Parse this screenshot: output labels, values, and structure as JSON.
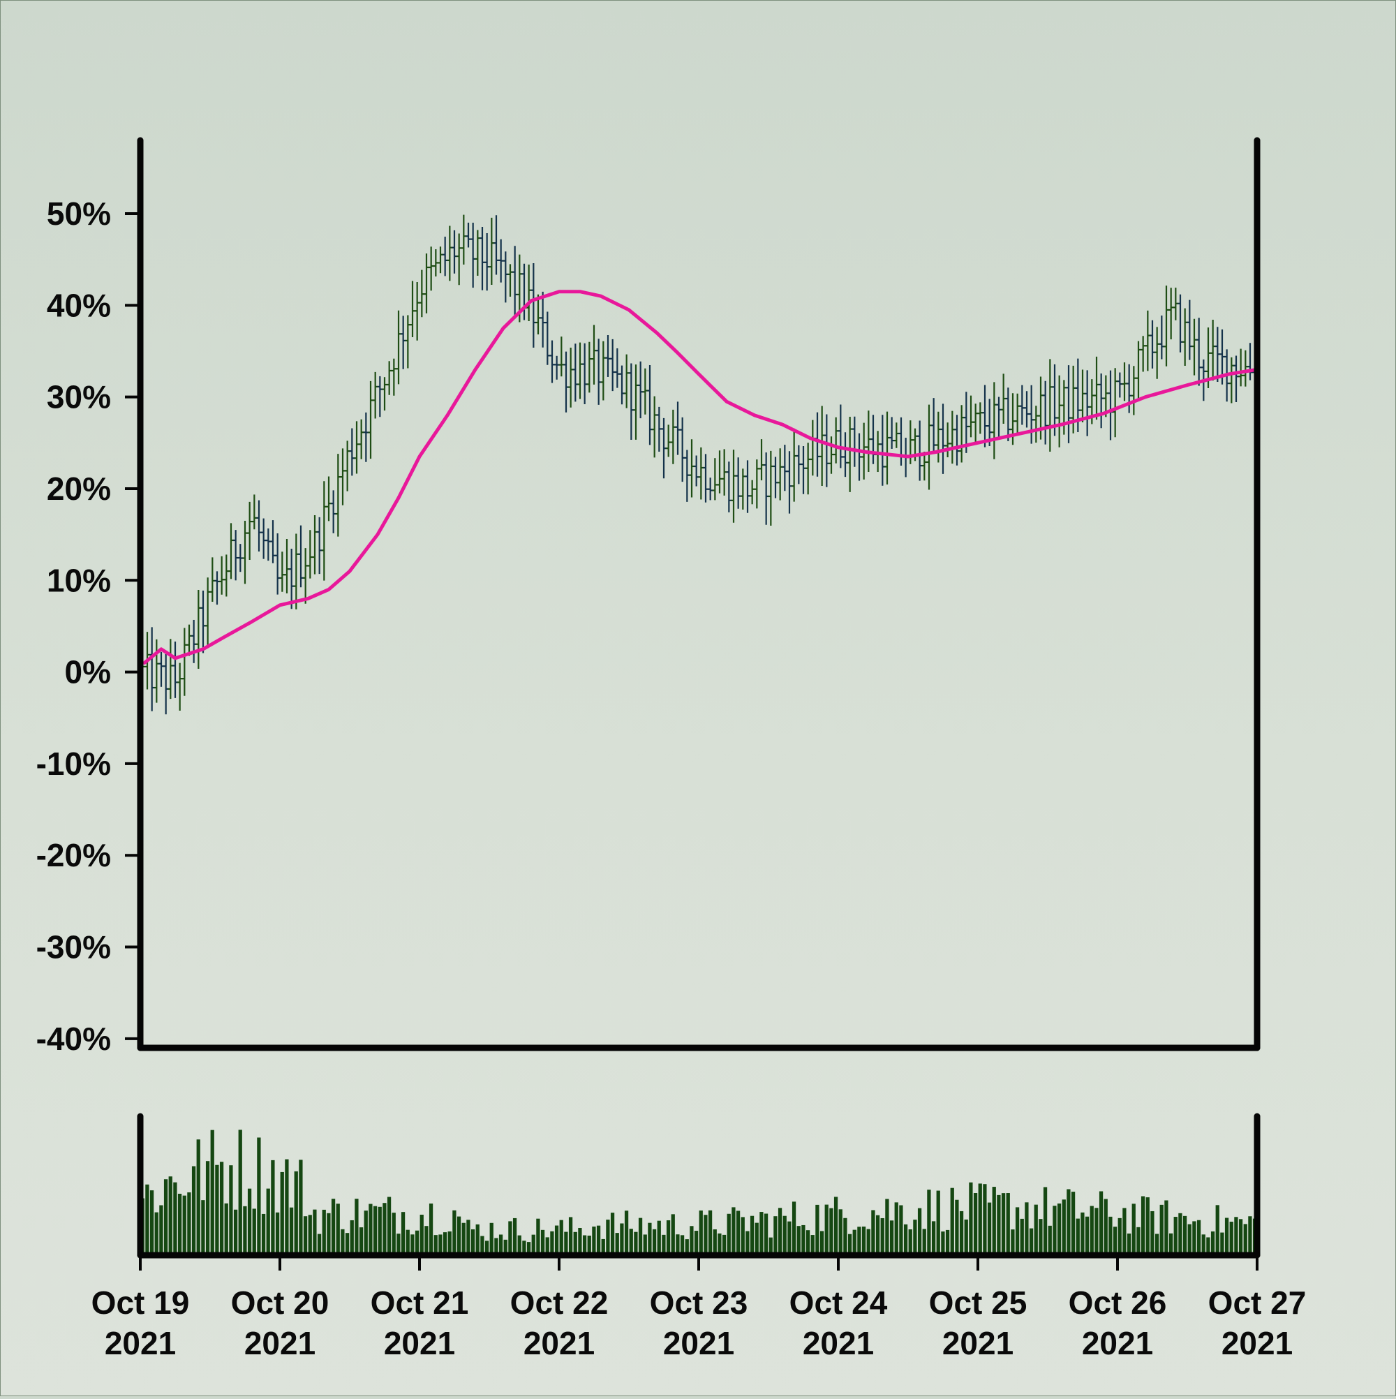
{
  "chart_data": {
    "type": "ohlc",
    "title": "",
    "xlabel": "",
    "ylabel": "",
    "x_range": [
      "2021-10-19",
      "2021-10-27"
    ],
    "x_ticks": [
      {
        "date": "2021-10-19",
        "line1": "Oct 19",
        "line2": "2021"
      },
      {
        "date": "2021-10-20",
        "line1": "Oct 20",
        "line2": "2021"
      },
      {
        "date": "2021-10-21",
        "line1": "Oct 21",
        "line2": "2021"
      },
      {
        "date": "2021-10-22",
        "line1": "Oct 22",
        "line2": "2021"
      },
      {
        "date": "2021-10-23",
        "line1": "Oct 23",
        "line2": "2021"
      },
      {
        "date": "2021-10-24",
        "line1": "Oct 24",
        "line2": "2021"
      },
      {
        "date": "2021-10-25",
        "line1": "Oct 25",
        "line2": "2021"
      },
      {
        "date": "2021-10-26",
        "line1": "Oct 26",
        "line2": "2021"
      },
      {
        "date": "2021-10-27",
        "line1": "Oct 27",
        "line2": "2021"
      }
    ],
    "y_ticks": [
      {
        "value": 50,
        "label": "50%"
      },
      {
        "value": 40,
        "label": "40%"
      },
      {
        "value": 30,
        "label": "30%"
      },
      {
        "value": 20,
        "label": "20%"
      },
      {
        "value": 10,
        "label": "10%"
      },
      {
        "value": 0,
        "label": "0%"
      },
      {
        "value": -10,
        "label": "-10%"
      },
      {
        "value": -20,
        "label": "-20%"
      },
      {
        "value": -30,
        "label": "-30%"
      },
      {
        "value": -40,
        "label": "-40%"
      }
    ],
    "ylim": [
      -41,
      58
    ],
    "grid": false,
    "legend": "none",
    "colors": {
      "price_up": "#1e4d14",
      "price_down": "#14324a",
      "moving_average": "#e8189a",
      "volume": "#154712",
      "axes": "#050505"
    },
    "price_path": [
      [
        0,
        0
      ],
      [
        0.25,
        -1
      ],
      [
        0.5,
        8
      ],
      [
        0.8,
        17
      ],
      [
        1.0,
        9
      ],
      [
        1.25,
        14
      ],
      [
        1.5,
        24
      ],
      [
        1.75,
        32
      ],
      [
        2.0,
        42
      ],
      [
        2.25,
        46
      ],
      [
        2.5,
        45
      ],
      [
        2.75,
        41
      ],
      [
        3.0,
        33
      ],
      [
        3.25,
        33
      ],
      [
        3.5,
        31
      ],
      [
        3.75,
        26
      ],
      [
        4.0,
        22
      ],
      [
        4.35,
        20
      ],
      [
        4.75,
        23
      ],
      [
        5.0,
        25
      ],
      [
        5.5,
        24
      ],
      [
        6.0,
        27
      ],
      [
        6.5,
        29
      ],
      [
        7.0,
        30
      ],
      [
        7.4,
        39
      ],
      [
        7.6,
        34
      ],
      [
        8.0,
        33
      ]
    ],
    "moving_average": [
      [
        0.03,
        1
      ],
      [
        0.15,
        2.5
      ],
      [
        0.25,
        1.5
      ],
      [
        0.45,
        2.5
      ],
      [
        0.6,
        3.8
      ],
      [
        0.8,
        5.5
      ],
      [
        1.0,
        7.3
      ],
      [
        1.2,
        8
      ],
      [
        1.35,
        9
      ],
      [
        1.5,
        11
      ],
      [
        1.7,
        15
      ],
      [
        1.85,
        19
      ],
      [
        2.0,
        23.5
      ],
      [
        2.2,
        28
      ],
      [
        2.4,
        33
      ],
      [
        2.6,
        37.5
      ],
      [
        2.8,
        40.5
      ],
      [
        3.0,
        41.5
      ],
      [
        3.15,
        41.5
      ],
      [
        3.3,
        41
      ],
      [
        3.5,
        39.5
      ],
      [
        3.7,
        37
      ],
      [
        3.85,
        34.8
      ],
      [
        4.0,
        32.5
      ],
      [
        4.2,
        29.5
      ],
      [
        4.4,
        28
      ],
      [
        4.6,
        27
      ],
      [
        4.8,
        25.5
      ],
      [
        5.0,
        24.5
      ],
      [
        5.2,
        24
      ],
      [
        5.5,
        23.5
      ],
      [
        5.7,
        24
      ],
      [
        6.0,
        25
      ],
      [
        6.3,
        26
      ],
      [
        6.6,
        27
      ],
      [
        6.9,
        28.2
      ],
      [
        7.2,
        30
      ],
      [
        7.5,
        31.3
      ],
      [
        7.8,
        32.5
      ],
      [
        8.0,
        33
      ]
    ]
  }
}
